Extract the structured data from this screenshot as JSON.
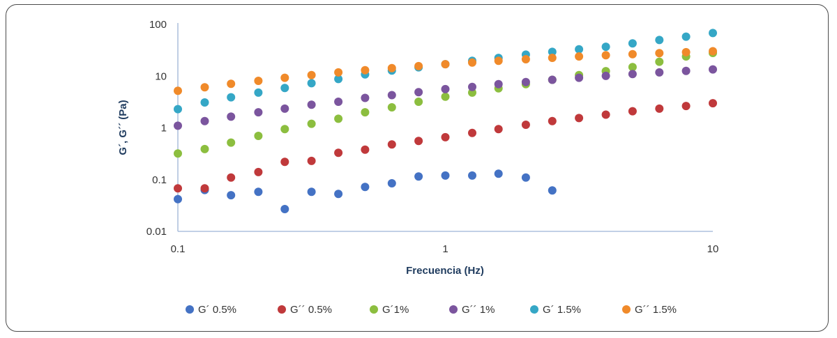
{
  "chart_data": {
    "type": "scatter",
    "xlabel": "Frecuencia (Hz)",
    "ylabel": "G´, G´´ (Pa)",
    "x_scale": "log",
    "y_scale": "log",
    "xlim": [
      0.1,
      10
    ],
    "ylim": [
      0.01,
      100
    ],
    "x_ticks": [
      "0.1",
      "1",
      "10"
    ],
    "y_ticks": [
      "100",
      "10",
      "1",
      "0.1",
      "0.01"
    ],
    "legend_position": "bottom",
    "grid": false,
    "series": [
      {
        "name": "G´ 0.5%",
        "color": "#4472c4",
        "x": [
          0.1,
          0.126,
          0.158,
          0.2,
          0.251,
          0.316,
          0.398,
          0.501,
          0.631,
          0.794,
          1.0,
          1.26,
          1.58,
          2.0,
          2.51
        ],
        "y": [
          0.042,
          0.063,
          0.05,
          0.058,
          0.027,
          0.058,
          0.053,
          0.072,
          0.085,
          0.115,
          0.12,
          0.12,
          0.13,
          0.11,
          0.062
        ]
      },
      {
        "name": "G´´ 0.5%",
        "color": "#c0393b",
        "x": [
          0.1,
          0.126,
          0.158,
          0.2,
          0.251,
          0.316,
          0.398,
          0.501,
          0.631,
          0.794,
          1.0,
          1.26,
          1.58,
          2.0,
          2.51,
          3.16,
          3.98,
          5.01,
          6.31,
          7.94,
          10.0
        ],
        "y": [
          0.068,
          0.068,
          0.11,
          0.14,
          0.22,
          0.23,
          0.33,
          0.38,
          0.48,
          0.56,
          0.66,
          0.8,
          0.95,
          1.15,
          1.35,
          1.55,
          1.8,
          2.1,
          2.35,
          2.65,
          3.0
        ]
      },
      {
        "name": "G´1%",
        "color": "#8cbe3f",
        "x": [
          0.1,
          0.126,
          0.158,
          0.2,
          0.251,
          0.316,
          0.398,
          0.501,
          0.631,
          0.794,
          1.0,
          1.26,
          1.58,
          2.0,
          2.51,
          3.16,
          3.98,
          5.01,
          6.31,
          7.94,
          10.0
        ],
        "y": [
          0.32,
          0.39,
          0.52,
          0.7,
          0.95,
          1.2,
          1.5,
          2.0,
          2.5,
          3.2,
          4.0,
          4.8,
          5.8,
          7.0,
          8.5,
          10.5,
          12.5,
          15.0,
          19.0,
          24.0,
          28.0
        ]
      },
      {
        "name": "G´´ 1%",
        "color": "#7b559e",
        "x": [
          0.1,
          0.126,
          0.158,
          0.2,
          0.251,
          0.316,
          0.398,
          0.501,
          0.631,
          0.794,
          1.0,
          1.26,
          1.58,
          2.0,
          2.51,
          3.16,
          3.98,
          5.01,
          6.31,
          7.94,
          10.0
        ],
        "y": [
          1.1,
          1.35,
          1.65,
          2.0,
          2.35,
          2.8,
          3.2,
          3.8,
          4.3,
          4.9,
          5.6,
          6.2,
          7.0,
          7.7,
          8.5,
          9.3,
          10.1,
          11.0,
          11.8,
          12.6,
          13.5
        ]
      },
      {
        "name": "G´ 1.5%",
        "color": "#35a7c6",
        "x": [
          0.1,
          0.126,
          0.158,
          0.2,
          0.251,
          0.316,
          0.398,
          0.501,
          0.631,
          0.794,
          1.0,
          1.26,
          1.58,
          2.0,
          2.51,
          3.16,
          3.98,
          5.01,
          6.31,
          7.94,
          10.0
        ],
        "y": [
          2.3,
          3.1,
          3.9,
          4.8,
          5.9,
          7.3,
          8.8,
          10.8,
          12.8,
          14.8,
          17.0,
          19.8,
          22.5,
          26.0,
          29.5,
          33.0,
          37.0,
          43.0,
          50.0,
          58.0,
          68.0
        ]
      },
      {
        "name": "G´´ 1.5%",
        "color": "#f08a2a",
        "x": [
          0.1,
          0.126,
          0.158,
          0.2,
          0.251,
          0.316,
          0.398,
          0.501,
          0.631,
          0.794,
          1.0,
          1.26,
          1.58,
          2.0,
          2.51,
          3.16,
          3.98,
          5.01,
          6.31,
          7.94,
          10.0
        ],
        "y": [
          5.2,
          6.1,
          7.1,
          8.1,
          9.3,
          10.5,
          11.8,
          13.0,
          14.3,
          15.6,
          17.0,
          18.3,
          19.8,
          21.2,
          22.6,
          24.0,
          25.3,
          26.6,
          27.8,
          29.0,
          30.3
        ]
      }
    ]
  }
}
